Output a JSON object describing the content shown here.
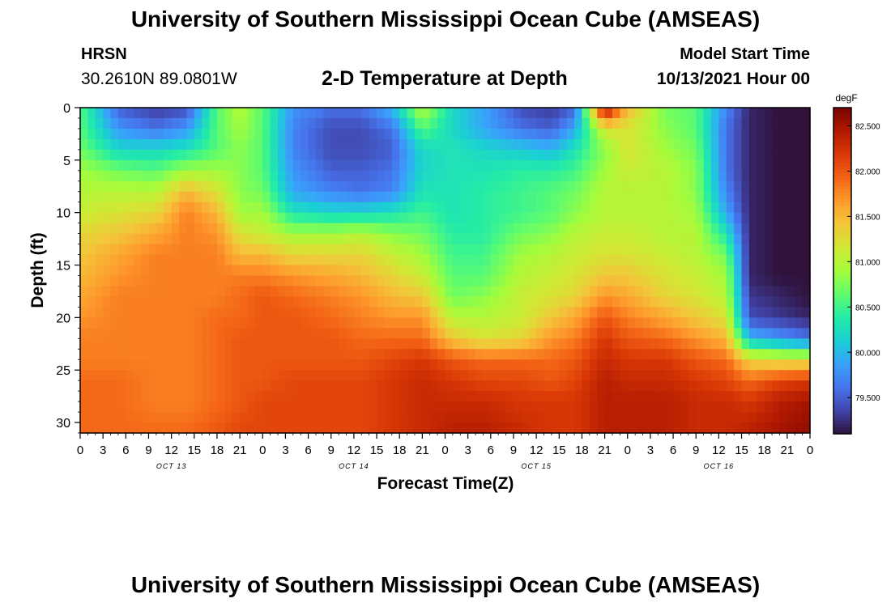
{
  "header": {
    "title": "University of Southern Mississippi Ocean Cube (AMSEAS)",
    "station_name": "HRSN",
    "station_coords": "30.2610N  89.0801W",
    "plot_title": "2-D Temperature at Depth",
    "model_start_label": "Model Start Time",
    "model_start_value": "10/13/2021 Hour 00"
  },
  "footer": {
    "title": "University of Southern Mississippi Ocean Cube (AMSEAS)"
  },
  "colors": {
    "colormap": [
      "#30123b",
      "#4145ab",
      "#4675ed",
      "#39a2fc",
      "#1bcfd4",
      "#24eca6",
      "#61fc6c",
      "#a4fc3b",
      "#d1e834",
      "#f3c63a",
      "#fe9b2d",
      "#f36315",
      "#d93806",
      "#b11901",
      "#7a0402"
    ]
  },
  "chart_data": {
    "type": "heatmap",
    "title": "2-D Temperature at Depth",
    "xlabel": "Forecast Time(Z)",
    "ylabel": "Depth (ft)",
    "x_ticks": [
      "0",
      "3",
      "6",
      "9",
      "12",
      "15",
      "18",
      "21",
      "0",
      "3",
      "6",
      "9",
      "12",
      "15",
      "18",
      "21",
      "0",
      "3",
      "6",
      "9",
      "12",
      "15",
      "18",
      "21",
      "0",
      "3",
      "6",
      "9",
      "12",
      "15",
      "18",
      "21",
      "0"
    ],
    "x_range_hours": [
      0,
      96
    ],
    "day_labels": [
      {
        "hour": 12,
        "label": "OCT 13"
      },
      {
        "hour": 36,
        "label": "OCT 14"
      },
      {
        "hour": 60,
        "label": "OCT 15"
      },
      {
        "hour": 84,
        "label": "OCT 16"
      }
    ],
    "y_ticks": [
      0,
      5,
      10,
      15,
      20,
      25,
      30
    ],
    "ylim": [
      0,
      31
    ],
    "y_reversed": true,
    "colorbar": {
      "unit": "degF",
      "ticks": [
        "82.500",
        "82.000",
        "81.500",
        "81.000",
        "80.500",
        "80.000",
        "79.500"
      ],
      "tick_values": [
        82.5,
        82.0,
        81.5,
        81.0,
        80.5,
        80.0,
        79.5
      ],
      "range": [
        79.1,
        82.7
      ]
    },
    "profile_depths_ft": [
      0,
      2,
      4,
      6,
      8,
      10,
      12,
      14,
      16,
      18,
      20,
      22,
      24,
      26,
      28,
      31
    ],
    "profiles": [
      {
        "hour": 0,
        "temps": [
          80.6,
          80.6,
          80.7,
          80.9,
          81.0,
          81.1,
          81.3,
          81.4,
          81.5,
          81.6,
          81.7,
          81.8,
          81.8,
          81.9,
          81.9,
          81.9
        ]
      },
      {
        "hour": 5,
        "temps": [
          79.5,
          79.8,
          80.2,
          80.7,
          81.0,
          81.2,
          81.4,
          81.6,
          81.7,
          81.8,
          81.8,
          81.8,
          81.8,
          81.9,
          81.9,
          81.9
        ]
      },
      {
        "hour": 10,
        "temps": [
          79.3,
          79.6,
          80.2,
          80.6,
          81.0,
          81.3,
          81.6,
          81.8,
          81.8,
          81.8,
          81.8,
          81.8,
          81.8,
          81.8,
          81.8,
          81.9
        ]
      },
      {
        "hour": 14,
        "temps": [
          79.4,
          79.8,
          80.3,
          80.9,
          81.5,
          81.8,
          81.8,
          81.8,
          81.8,
          81.8,
          81.8,
          81.8,
          81.8,
          81.8,
          81.8,
          81.9
        ]
      },
      {
        "hour": 18,
        "temps": [
          80.6,
          80.6,
          80.6,
          80.9,
          81.2,
          81.5,
          81.7,
          81.8,
          81.8,
          81.8,
          81.9,
          81.9,
          81.9,
          81.9,
          81.9,
          82.0
        ]
      },
      {
        "hour": 21,
        "temps": [
          81.0,
          80.9,
          80.8,
          80.8,
          80.8,
          80.9,
          81.2,
          81.5,
          81.8,
          81.9,
          81.9,
          82.0,
          82.0,
          82.0,
          82.0,
          82.1
        ]
      },
      {
        "hour": 24,
        "temps": [
          80.6,
          80.6,
          80.6,
          80.6,
          80.7,
          80.9,
          81.1,
          81.5,
          81.8,
          82.0,
          82.0,
          82.0,
          82.0,
          82.0,
          82.1,
          82.1
        ]
      },
      {
        "hour": 28,
        "temps": [
          79.8,
          79.7,
          79.7,
          79.8,
          79.9,
          80.3,
          80.9,
          81.3,
          81.7,
          81.9,
          82.0,
          82.0,
          82.0,
          82.1,
          82.1,
          82.1
        ]
      },
      {
        "hour": 33,
        "temps": [
          79.6,
          79.4,
          79.4,
          79.5,
          79.7,
          80.2,
          80.9,
          81.3,
          81.6,
          81.8,
          81.9,
          82.0,
          82.0,
          82.1,
          82.1,
          82.1
        ]
      },
      {
        "hour": 37,
        "temps": [
          79.6,
          79.4,
          79.4,
          79.5,
          79.6,
          80.2,
          81.0,
          81.3,
          81.5,
          81.7,
          81.8,
          81.9,
          82.0,
          82.1,
          82.1,
          82.1
        ]
      },
      {
        "hour": 41,
        "temps": [
          80.0,
          79.6,
          79.5,
          79.6,
          79.7,
          80.3,
          80.8,
          81.1,
          81.3,
          81.5,
          81.7,
          81.9,
          82.1,
          82.2,
          82.2,
          82.2
        ]
      },
      {
        "hour": 45,
        "temps": [
          81.0,
          80.6,
          80.2,
          80.2,
          80.3,
          80.5,
          80.7,
          80.9,
          81.1,
          81.4,
          81.7,
          81.9,
          82.2,
          82.3,
          82.3,
          82.3
        ]
      },
      {
        "hour": 49,
        "temps": [
          80.2,
          80.2,
          80.3,
          80.3,
          80.3,
          80.3,
          80.4,
          80.5,
          80.6,
          80.7,
          81.0,
          81.4,
          82.0,
          82.2,
          82.3,
          82.4
        ]
      },
      {
        "hour": 53,
        "temps": [
          79.9,
          79.9,
          80.2,
          80.3,
          80.4,
          80.4,
          80.4,
          80.5,
          80.6,
          80.8,
          81.0,
          81.2,
          81.9,
          82.1,
          82.3,
          82.4
        ]
      },
      {
        "hour": 58,
        "temps": [
          79.4,
          79.6,
          80.1,
          80.4,
          80.5,
          80.5,
          80.7,
          80.9,
          81.0,
          81.1,
          81.1,
          81.3,
          81.9,
          82.1,
          82.2,
          82.3
        ]
      },
      {
        "hour": 62,
        "temps": [
          79.3,
          79.5,
          80.0,
          80.4,
          80.6,
          80.6,
          80.8,
          81.0,
          81.1,
          81.2,
          81.4,
          81.7,
          81.9,
          82.0,
          82.2,
          82.2
        ]
      },
      {
        "hour": 65,
        "temps": [
          79.5,
          79.9,
          80.3,
          80.5,
          80.7,
          80.8,
          81.0,
          81.1,
          81.2,
          81.3,
          81.6,
          81.8,
          82.0,
          82.1,
          82.2,
          82.2
        ]
      },
      {
        "hour": 69,
        "temps": [
          82.6,
          81.2,
          80.8,
          80.9,
          81.0,
          81.0,
          81.1,
          81.2,
          81.4,
          81.7,
          82.0,
          82.2,
          82.3,
          82.4,
          82.4,
          82.4
        ]
      },
      {
        "hour": 72,
        "temps": [
          81.5,
          81.2,
          81.2,
          81.1,
          81.0,
          81.0,
          81.1,
          81.2,
          81.4,
          81.6,
          81.8,
          82.0,
          82.2,
          82.3,
          82.4,
          82.4
        ]
      },
      {
        "hour": 77,
        "temps": [
          80.7,
          80.8,
          80.9,
          81.0,
          81.0,
          81.0,
          81.0,
          81.1,
          81.2,
          81.3,
          81.6,
          81.9,
          82.2,
          82.3,
          82.4,
          82.4
        ]
      },
      {
        "hour": 81,
        "temps": [
          80.6,
          80.6,
          80.7,
          80.8,
          80.8,
          80.9,
          81.0,
          81.0,
          81.1,
          81.2,
          81.4,
          81.7,
          82.0,
          82.2,
          82.3,
          82.3
        ]
      },
      {
        "hour": 85,
        "temps": [
          79.7,
          79.6,
          79.6,
          79.6,
          79.7,
          79.9,
          80.3,
          80.7,
          80.9,
          81.0,
          81.2,
          81.5,
          81.9,
          82.1,
          82.3,
          82.3
        ]
      },
      {
        "hour": 88,
        "temps": [
          79.2,
          79.2,
          79.2,
          79.2,
          79.2,
          79.2,
          79.2,
          79.2,
          79.2,
          79.3,
          79.4,
          80.0,
          81.3,
          81.9,
          82.2,
          82.4
        ]
      },
      {
        "hour": 92,
        "temps": [
          79.1,
          79.1,
          79.1,
          79.1,
          79.1,
          79.1,
          79.1,
          79.1,
          79.1,
          79.2,
          79.3,
          79.8,
          81.2,
          82.1,
          82.4,
          82.5
        ]
      },
      {
        "hour": 96,
        "temps": [
          79.1,
          79.1,
          79.1,
          79.1,
          79.1,
          79.1,
          79.1,
          79.1,
          79.1,
          79.1,
          79.2,
          79.6,
          81.2,
          82.2,
          82.5,
          82.6
        ]
      }
    ]
  }
}
